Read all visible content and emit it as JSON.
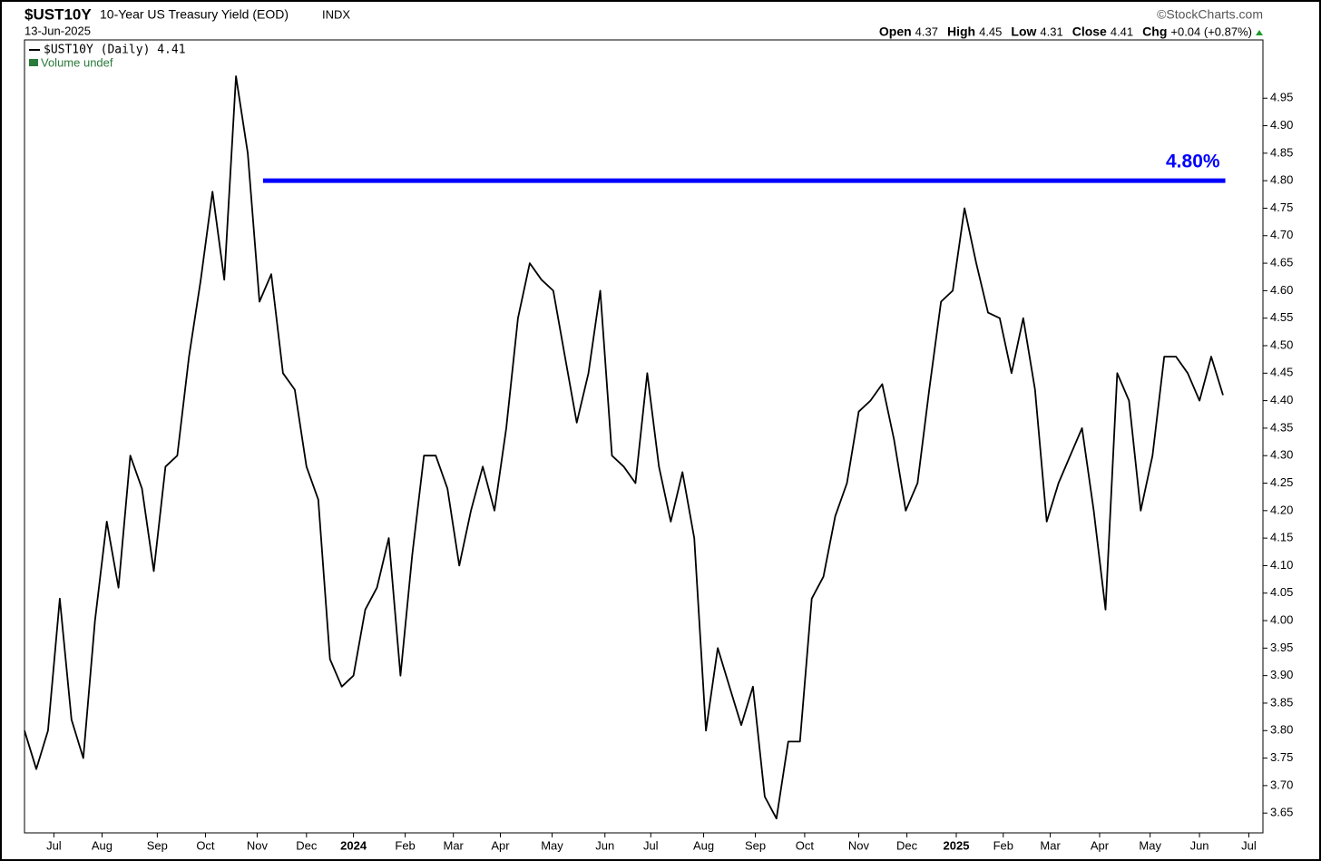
{
  "chart_data": {
    "type": "line",
    "symbol": "$UST10Y",
    "title": "10-Year US Treasury Yield (EOD)",
    "exchange": "INDX",
    "date": "13-Jun-2025",
    "source": "©StockCharts.com",
    "quote": [
      {
        "label": "Open",
        "value": "4.37"
      },
      {
        "label": "High",
        "value": "4.45"
      },
      {
        "label": "Low",
        "value": "4.31"
      },
      {
        "label": "Close",
        "value": "4.41"
      },
      {
        "label": "Chg",
        "value": "+0.04 (+0.87%)"
      }
    ],
    "volume_legend": "Volume undef",
    "series": [
      {
        "name": "$UST10Y (Daily) 4.41",
        "color": "#000000",
        "values": [
          3.8,
          3.73,
          3.8,
          4.04,
          3.82,
          3.75,
          4.0,
          4.18,
          4.06,
          4.3,
          4.24,
          4.09,
          4.28,
          4.3,
          4.48,
          4.62,
          4.78,
          4.62,
          4.99,
          4.85,
          4.58,
          4.63,
          4.45,
          4.42,
          4.28,
          4.22,
          3.93,
          3.88,
          3.9,
          4.02,
          4.06,
          4.15,
          3.9,
          4.12,
          4.3,
          4.3,
          4.24,
          4.1,
          4.2,
          4.28,
          4.2,
          4.35,
          4.55,
          4.65,
          4.62,
          4.6,
          4.48,
          4.36,
          4.45,
          4.6,
          4.3,
          4.28,
          4.25,
          4.45,
          4.28,
          4.18,
          4.27,
          4.15,
          3.8,
          3.95,
          3.88,
          3.81,
          3.88,
          3.68,
          3.64,
          3.78,
          3.78,
          4.04,
          4.08,
          4.19,
          4.25,
          4.38,
          4.4,
          4.43,
          4.33,
          4.2,
          4.25,
          4.42,
          4.58,
          4.6,
          4.75,
          4.65,
          4.56,
          4.55,
          4.45,
          4.55,
          4.42,
          4.18,
          4.25,
          4.3,
          4.35,
          4.2,
          4.02,
          4.45,
          4.4,
          4.2,
          4.3,
          4.48,
          4.48,
          4.45,
          4.4,
          4.48,
          4.41
        ]
      }
    ],
    "hline": {
      "value": 4.8,
      "label": "4.80%",
      "from": 20.3,
      "to": 102.2,
      "color": "#0000ff"
    },
    "xlim": [
      0,
      105.4
    ],
    "xticks": [
      {
        "value": 2.5,
        "label": "Jul"
      },
      {
        "value": 6.6,
        "label": "Aug"
      },
      {
        "value": 11.3,
        "label": "Sep"
      },
      {
        "value": 15.4,
        "label": "Oct"
      },
      {
        "value": 19.8,
        "label": "Nov"
      },
      {
        "value": 24.0,
        "label": "Dec"
      },
      {
        "value": 28.0,
        "label": "2024"
      },
      {
        "value": 32.4,
        "label": "Feb"
      },
      {
        "value": 36.5,
        "label": "Mar"
      },
      {
        "value": 40.5,
        "label": "Apr"
      },
      {
        "value": 44.9,
        "label": "May"
      },
      {
        "value": 49.4,
        "label": "Jun"
      },
      {
        "value": 53.3,
        "label": "Jul"
      },
      {
        "value": 57.8,
        "label": "Aug"
      },
      {
        "value": 62.2,
        "label": "Sep"
      },
      {
        "value": 66.4,
        "label": "Oct"
      },
      {
        "value": 71.0,
        "label": "Nov"
      },
      {
        "value": 75.1,
        "label": "Dec"
      },
      {
        "value": 79.3,
        "label": "2025"
      },
      {
        "value": 83.3,
        "label": "Feb"
      },
      {
        "value": 87.3,
        "label": "Mar"
      },
      {
        "value": 91.5,
        "label": "Apr"
      },
      {
        "value": 95.8,
        "label": "May"
      },
      {
        "value": 100.0,
        "label": "Jun"
      },
      {
        "value": 104.2,
        "label": "Jul"
      }
    ],
    "ylim": [
      3.614,
      5.056
    ],
    "yticks": [
      3.65,
      {
        "value": 3.7,
        "label": "3.70"
      },
      3.75,
      {
        "value": 3.8,
        "label": "3.80"
      },
      3.85,
      {
        "value": 3.9,
        "label": "3.90"
      },
      3.95,
      {
        "value": 4,
        "label": "4.00"
      },
      4.05,
      {
        "value": 4.1,
        "label": "4.10"
      },
      4.15,
      {
        "value": 4.2,
        "label": "4.20"
      },
      4.25,
      {
        "value": 4.3,
        "label": "4.30"
      },
      4.35,
      {
        "value": 4.4,
        "label": "4.40"
      },
      4.45,
      {
        "value": 4.5,
        "label": "4.50"
      },
      4.55,
      {
        "value": 4.6,
        "label": "4.60"
      },
      4.65,
      {
        "value": 4.7,
        "label": "4.70"
      },
      4.75,
      {
        "value": 4.8,
        "label": "4.80"
      },
      4.85,
      {
        "value": 4.9,
        "label": "4.90"
      },
      4.95
    ],
    "grid": false
  }
}
